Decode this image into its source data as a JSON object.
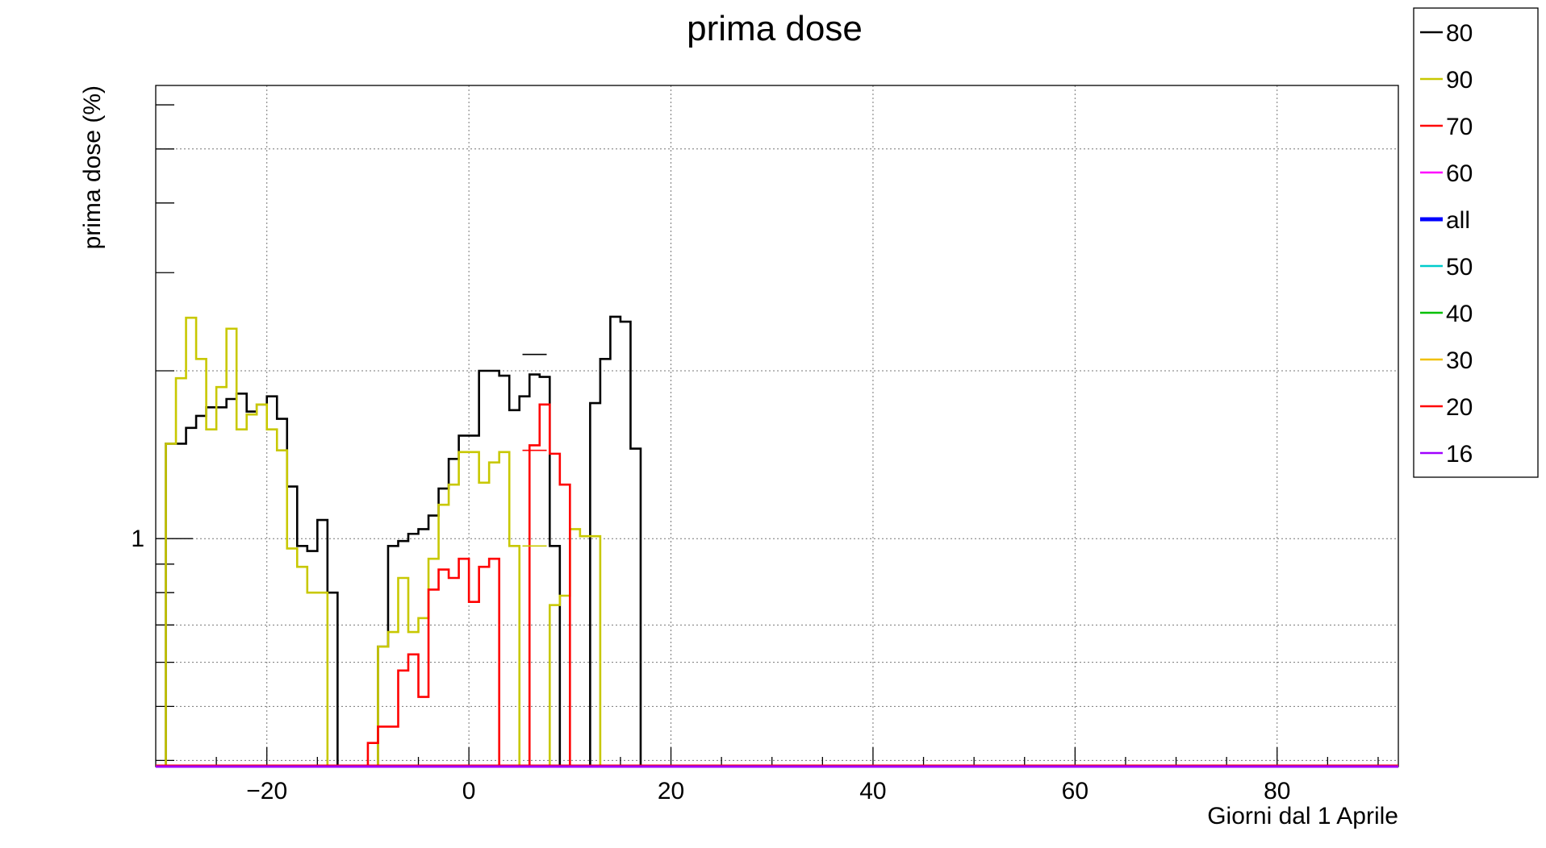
{
  "chart_data": {
    "type": "line",
    "title": "prima dose",
    "xlabel": "Giorni dal 1 Aprile",
    "ylabel": "prima dose (%)",
    "xlim": [
      -31,
      92
    ],
    "ylim": [
      0.39,
      6.5
    ],
    "y_scale": "log",
    "grid": true,
    "x_ticks": [
      -20,
      0,
      20,
      40,
      60,
      80
    ],
    "x_tick_labels": [
      "−20",
      "0",
      "20",
      "40",
      "60",
      "80"
    ],
    "y_ticks": [
      1
    ],
    "y_tick_labels": [
      "1"
    ],
    "legend_position": "top-right",
    "legend": [
      {
        "label": "80",
        "color": "#000000"
      },
      {
        "label": "90",
        "color": "#c8c800"
      },
      {
        "label": "70",
        "color": "#ff0000"
      },
      {
        "label": "60",
        "color": "#ff00ff"
      },
      {
        "label": "all",
        "color": "#0000ff"
      },
      {
        "label": "50",
        "color": "#00cccc"
      },
      {
        "label": "40",
        "color": "#00c000"
      },
      {
        "label": "30",
        "color": "#f0c000"
      },
      {
        "label": "20",
        "color": "#ff0000"
      },
      {
        "label": "16",
        "color": "#a000ff"
      }
    ],
    "series": [
      {
        "name": "80",
        "color": "#000000",
        "bin_start": -31,
        "values": [
          null,
          1.48,
          1.48,
          1.58,
          1.66,
          1.72,
          1.72,
          1.78,
          1.82,
          1.69,
          1.74,
          1.8,
          1.64,
          1.24,
          0.97,
          0.95,
          1.08,
          0.8,
          null,
          null,
          null,
          null,
          0.64,
          0.97,
          0.99,
          1.02,
          1.04,
          1.1,
          1.23,
          1.39,
          1.53,
          1.53,
          2.0,
          2.0,
          1.96,
          1.7,
          1.8,
          1.97,
          1.95,
          0.97,
          null,
          null,
          null,
          1.75,
          2.1,
          2.5,
          2.45,
          1.45
        ]
      },
      {
        "name": "90",
        "color": "#c8c800",
        "bin_start": -31,
        "values": [
          null,
          1.48,
          1.94,
          2.49,
          2.1,
          1.57,
          1.87,
          2.38,
          1.57,
          1.67,
          1.74,
          1.57,
          1.44,
          0.96,
          0.89,
          0.8,
          0.8,
          null,
          null,
          null,
          null,
          null,
          0.64,
          0.68,
          0.85,
          0.68,
          0.72,
          0.92,
          1.15,
          1.25,
          1.43,
          1.43,
          1.26,
          1.37,
          1.43,
          0.97,
          null,
          null,
          null,
          0.76,
          0.79,
          1.04,
          1.01,
          1.01
        ]
      },
      {
        "name": "70",
        "color": "#ff0000",
        "bin_start": -10,
        "values": [
          0.43,
          0.46,
          0.46,
          0.58,
          0.62,
          0.52,
          0.81,
          0.88,
          0.85,
          0.92,
          0.77,
          0.89,
          0.92,
          null,
          null,
          null,
          1.47,
          1.74,
          1.42,
          1.25
        ]
      },
      {
        "name": "60",
        "color": "#ff00ff",
        "values": []
      },
      {
        "name": "all",
        "color": "#0000ff",
        "values": []
      },
      {
        "name": "50",
        "color": "#00cccc",
        "values": []
      },
      {
        "name": "40",
        "color": "#00c000",
        "values": []
      },
      {
        "name": "30",
        "color": "#f0c000",
        "values": []
      },
      {
        "name": "20",
        "color": "#ff0000",
        "values": []
      },
      {
        "name": "16",
        "color": "#a000ff",
        "values": []
      }
    ],
    "error_markers": [
      {
        "series": "80",
        "x": 6.5,
        "y": 2.14
      },
      {
        "series": "90",
        "x": 6.5,
        "y": 0.97
      },
      {
        "series": "70",
        "x": 6.5,
        "y": 1.44
      }
    ]
  }
}
